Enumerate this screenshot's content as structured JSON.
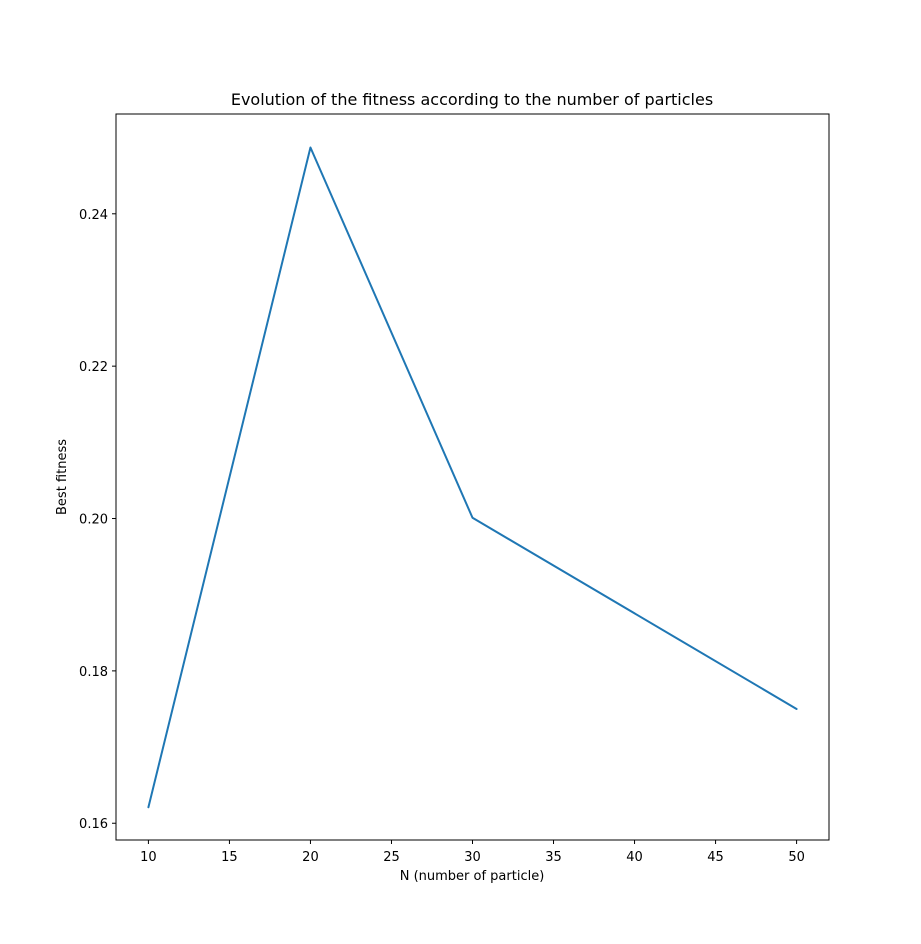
{
  "chart_data": {
    "type": "line",
    "title": "Evolution of the fitness according to the number of particles",
    "xlabel": "N (number of particle)",
    "ylabel": "Best fitness",
    "x": [
      10,
      20,
      30,
      50
    ],
    "series": [
      {
        "values": [
          0.1621,
          0.2487,
          0.2001,
          0.175
        ],
        "color": "#1f77b4"
      }
    ],
    "xlim": [
      8,
      52
    ],
    "ylim": [
      0.1578,
      0.2531
    ],
    "xticks": [
      10,
      15,
      20,
      25,
      30,
      35,
      40,
      45,
      50
    ],
    "xtick_labels": [
      "10",
      "15",
      "20",
      "25",
      "30",
      "35",
      "40",
      "45",
      "50"
    ],
    "yticks": [
      0.16,
      0.18,
      0.2,
      0.22,
      0.24
    ],
    "ytick_labels": [
      "0.16",
      "0.18",
      "0.20",
      "0.22",
      "0.24"
    ],
    "grid": false,
    "legend": false
  }
}
